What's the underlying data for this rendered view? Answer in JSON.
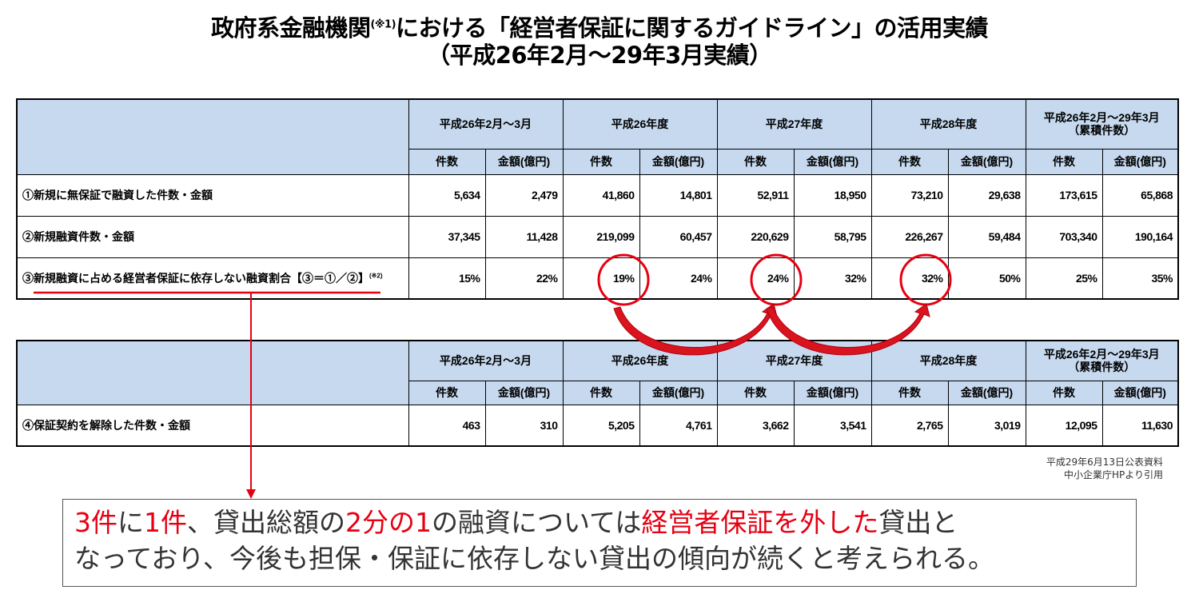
{
  "title": {
    "line1_before": "政府系金融機関",
    "line1_note": "(※1)",
    "line1_after": "における「経営者保証に関するガイドライン」の活用実績",
    "line2": "（平成26年2月～29年3月実績）"
  },
  "periods": [
    "平成26年2月～3月",
    "平成26年度",
    "平成27年度",
    "平成28年度"
  ],
  "cumulative_header": {
    "line1": "平成26年2月～29年3月",
    "line2": "（累積件数）"
  },
  "subheaders": {
    "count": "件数",
    "amount": "金額(億円)"
  },
  "table1": {
    "rows": [
      {
        "label": "①新規に無保証で融資した件数・金額",
        "note": "",
        "values": [
          "5,634",
          "2,479",
          "41,860",
          "14,801",
          "52,911",
          "18,950",
          "73,210",
          "29,638",
          "173,615",
          "65,868"
        ]
      },
      {
        "label": "②新規融資件数・金額",
        "note": "",
        "values": [
          "37,345",
          "11,428",
          "219,099",
          "60,457",
          "220,629",
          "58,795",
          "226,267",
          "59,484",
          "703,340",
          "190,164"
        ]
      },
      {
        "label": "③新規融資に占める経営者保証に依存しない融資割合【③＝①／②】",
        "note": "(※2)",
        "values": [
          "15%",
          "22%",
          "19%",
          "24%",
          "24%",
          "32%",
          "32%",
          "50%",
          "25%",
          "35%"
        ]
      }
    ]
  },
  "table2": {
    "rows": [
      {
        "label": "④保証契約を解除した件数・金額",
        "values": [
          "463",
          "310",
          "5,205",
          "4,761",
          "3,662",
          "3,541",
          "2,765",
          "3,019",
          "12,095",
          "11,630"
        ]
      }
    ]
  },
  "source": {
    "line1": "平成29年6月13日公表資料",
    "line2": "中小企業庁HPより引用"
  },
  "callout": {
    "p1": "3件",
    "p2": "に",
    "p3": "1件",
    "p4": "、貸出総額の",
    "p5": "2分の1",
    "p6": "の融資については",
    "p7": "経営者保証を外した",
    "p8": "貸出と",
    "p9": "なっており、今後も担保・保証に依存しない貸出の傾向が続くと考えられる。"
  },
  "colors": {
    "header_bg": "#c6d9ef",
    "accent_red": "#e60012"
  },
  "icons": [
    "circle-highlight",
    "curved-arrow",
    "down-arrow"
  ]
}
